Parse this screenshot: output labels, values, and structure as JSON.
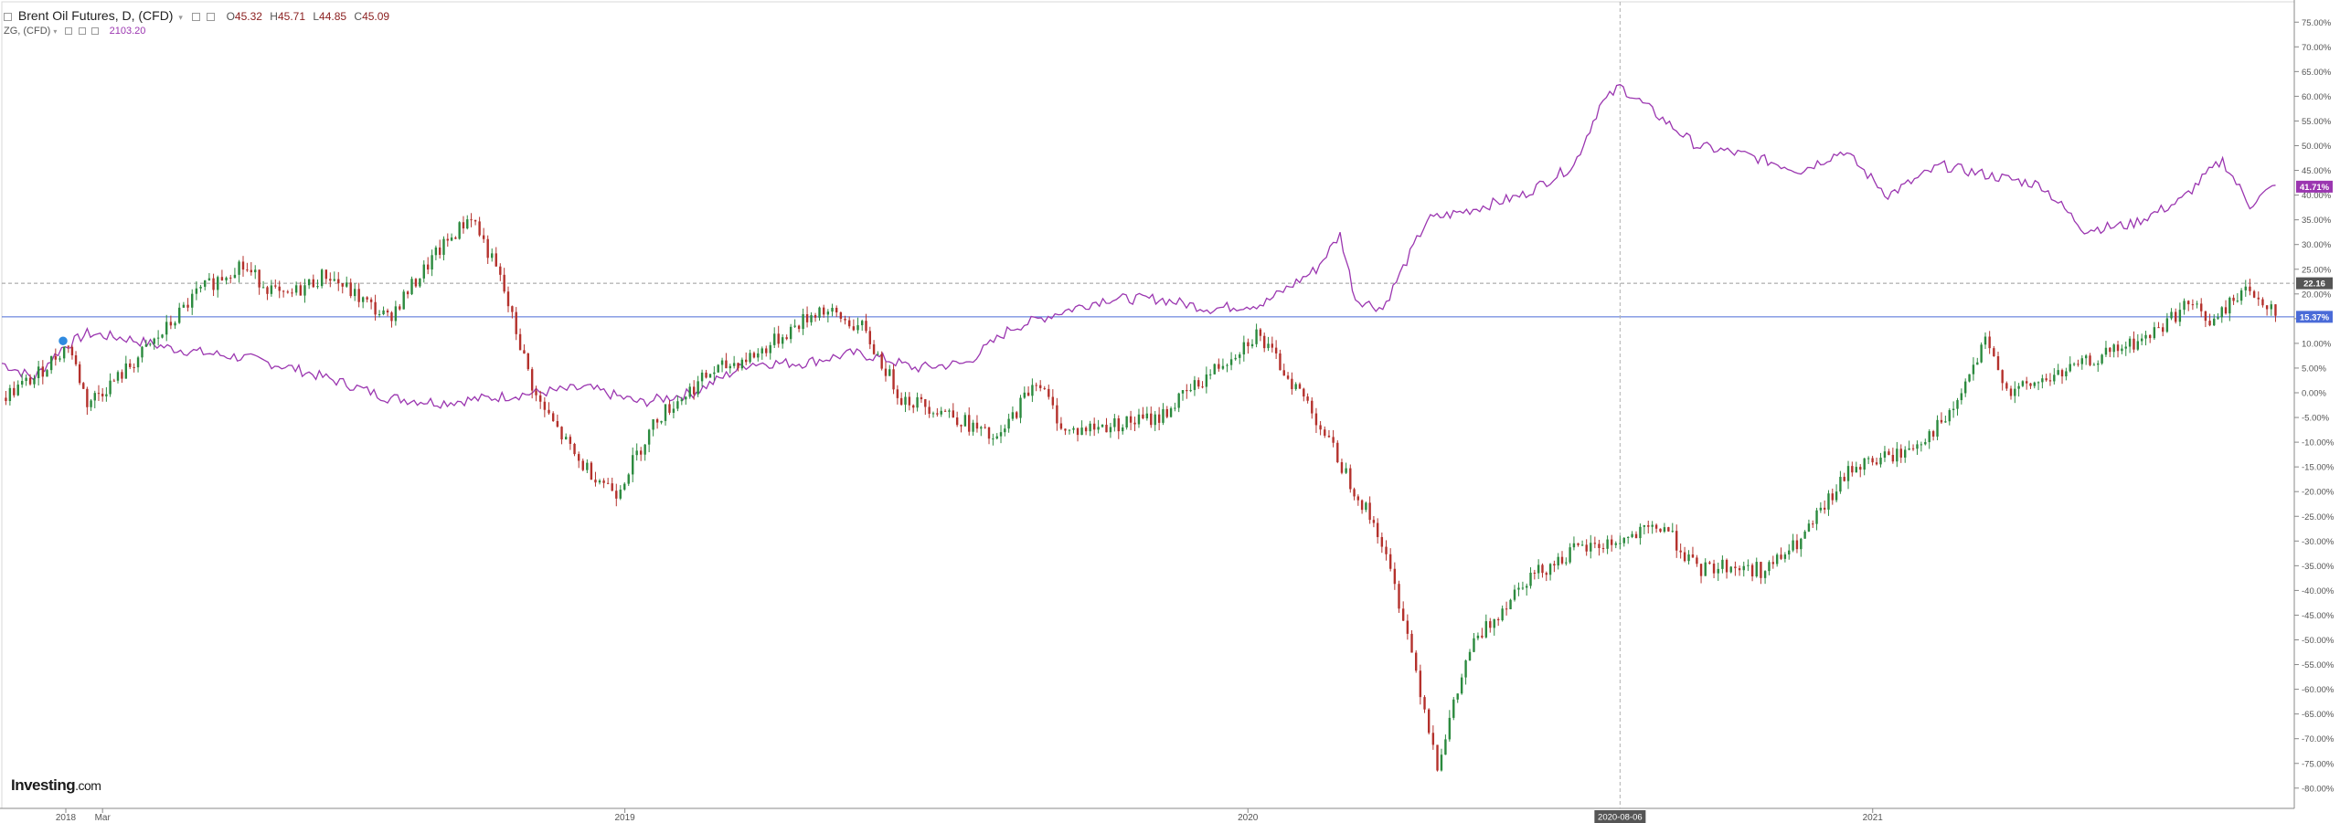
{
  "legend": {
    "main_title": "Brent Oil Futures, D, (CFD)",
    "o_label": "O",
    "o_value": "45.32",
    "h_label": "H",
    "h_value": "45.71",
    "l_label": "L",
    "l_value": "44.85",
    "c_label": "C",
    "c_value": "45.09",
    "compare_title": "ZG, (CFD)",
    "compare_value": "2103.20"
  },
  "brand": {
    "name": "Investing",
    "suffix": ".com"
  },
  "colors": {
    "up": "#2b8a3e",
    "down": "#b4312c",
    "compare": "#9b36b0",
    "hline": "#4a6bd8",
    "grid": "#f2f2f2"
  },
  "chart_data": {
    "type": "line",
    "title": "Brent Oil Futures, D, (CFD)",
    "xlabel": "",
    "ylabel": "",
    "x_tick_labels": [
      "2018",
      "Mar",
      "2019",
      "2020",
      "2021"
    ],
    "crosshair_x_label": "2020-08-06",
    "y_ticks": [
      75,
      70,
      65,
      60,
      55,
      50,
      45,
      40,
      35,
      30,
      25,
      20,
      15,
      10,
      5,
      0,
      -5,
      -10,
      -15,
      -20,
      -25,
      -30,
      -35,
      -40,
      -45,
      -50,
      -55,
      -60,
      -65,
      -70,
      -75,
      -80
    ],
    "y_tick_format": "percent",
    "ylim": [
      -81,
      78
    ],
    "x_range": [
      "2018-01-01",
      "2021-09-05"
    ],
    "horizontal_line_value": 15.37,
    "horizontal_line_label": "15.37%",
    "dashed_line_value": 22.16,
    "dashed_line_label": "22.16",
    "last_value_label": "41.71%",
    "series": [
      {
        "name": "Brent Oil Futures, D, (CFD)",
        "style": "candlestick",
        "x": [
          "2018-01-01",
          "2018-01-20",
          "2018-02-09",
          "2018-02-20",
          "2018-03-10",
          "2018-04-05",
          "2018-04-25",
          "2018-05-20",
          "2018-06-15",
          "2018-07-10",
          "2018-08-15",
          "2018-09-10",
          "2018-10-03",
          "2018-10-20",
          "2018-11-10",
          "2018-12-05",
          "2018-12-27",
          "2019-01-20",
          "2019-02-20",
          "2019-03-20",
          "2019-04-25",
          "2019-05-20",
          "2019-06-12",
          "2019-07-10",
          "2019-08-07",
          "2019-08-30",
          "2019-09-16",
          "2019-10-03",
          "2019-11-10",
          "2019-12-10",
          "2020-01-06",
          "2020-02-05",
          "2020-03-01",
          "2020-03-17",
          "2020-04-01",
          "2020-04-21",
          "2020-05-10",
          "2020-06-10",
          "2020-07-10",
          "2020-08-06",
          "2020-09-01",
          "2020-09-20",
          "2020-10-05",
          "2020-10-30",
          "2020-11-20",
          "2020-12-20",
          "2021-01-20",
          "2021-02-15",
          "2021-03-08",
          "2021-03-23",
          "2021-04-15",
          "2021-05-20",
          "2021-06-10",
          "2021-07-05",
          "2021-07-20",
          "2021-08-05",
          "2021-08-25"
        ],
        "values": [
          -1,
          3,
          10,
          -2,
          3,
          12,
          20,
          26,
          19,
          24,
          15,
          27,
          36,
          23,
          -1,
          -14,
          -20,
          -5,
          4,
          8,
          17,
          13,
          -1,
          -4,
          -10,
          3,
          -8,
          -7,
          -5,
          4,
          12,
          -2,
          -18,
          -28,
          -45,
          -75,
          -52,
          -38,
          -32,
          -30,
          -27,
          -36,
          -35,
          -36,
          -30,
          -15,
          -12,
          -5,
          10,
          0,
          3,
          8,
          11,
          18,
          14,
          21,
          17
        ]
      },
      {
        "name": "ZG, (CFD)",
        "style": "line",
        "x": [
          "2018-01-01",
          "2018-01-20",
          "2018-02-05",
          "2018-02-20",
          "2018-03-15",
          "2018-04-10",
          "2018-05-01",
          "2018-05-25",
          "2018-06-20",
          "2018-07-20",
          "2018-08-15",
          "2018-09-15",
          "2018-10-15",
          "2018-11-10",
          "2018-12-10",
          "2019-01-10",
          "2019-02-10",
          "2019-03-15",
          "2019-04-15",
          "2019-05-15",
          "2019-06-01",
          "2019-06-20",
          "2019-07-20",
          "2019-08-15",
          "2019-09-10",
          "2019-10-10",
          "2019-11-10",
          "2019-12-10",
          "2020-01-10",
          "2020-02-10",
          "2020-02-24",
          "2020-03-04",
          "2020-03-20",
          "2020-04-15",
          "2020-05-10",
          "2020-06-10",
          "2020-07-10",
          "2020-07-25",
          "2020-08-06",
          "2020-08-25",
          "2020-09-20",
          "2020-10-20",
          "2020-11-20",
          "2020-12-15",
          "2021-01-10",
          "2021-02-10",
          "2021-03-10",
          "2021-04-10",
          "2021-05-05",
          "2021-06-01",
          "2021-07-01",
          "2021-07-15",
          "2021-07-25",
          "2021-08-10",
          "2021-08-25"
        ],
        "values": [
          6,
          3,
          9,
          12,
          11,
          9,
          8,
          7,
          5,
          2,
          -1,
          -2,
          -1,
          0,
          1,
          -2,
          0,
          6,
          6,
          8,
          7,
          5,
          6,
          13,
          16,
          19,
          19,
          17,
          18,
          25,
          32,
          19,
          17,
          35,
          37,
          40,
          46,
          58,
          62,
          57,
          50,
          48,
          45,
          49,
          40,
          46,
          44,
          42,
          33,
          34,
          39,
          44,
          47,
          38,
          42
        ]
      }
    ]
  }
}
